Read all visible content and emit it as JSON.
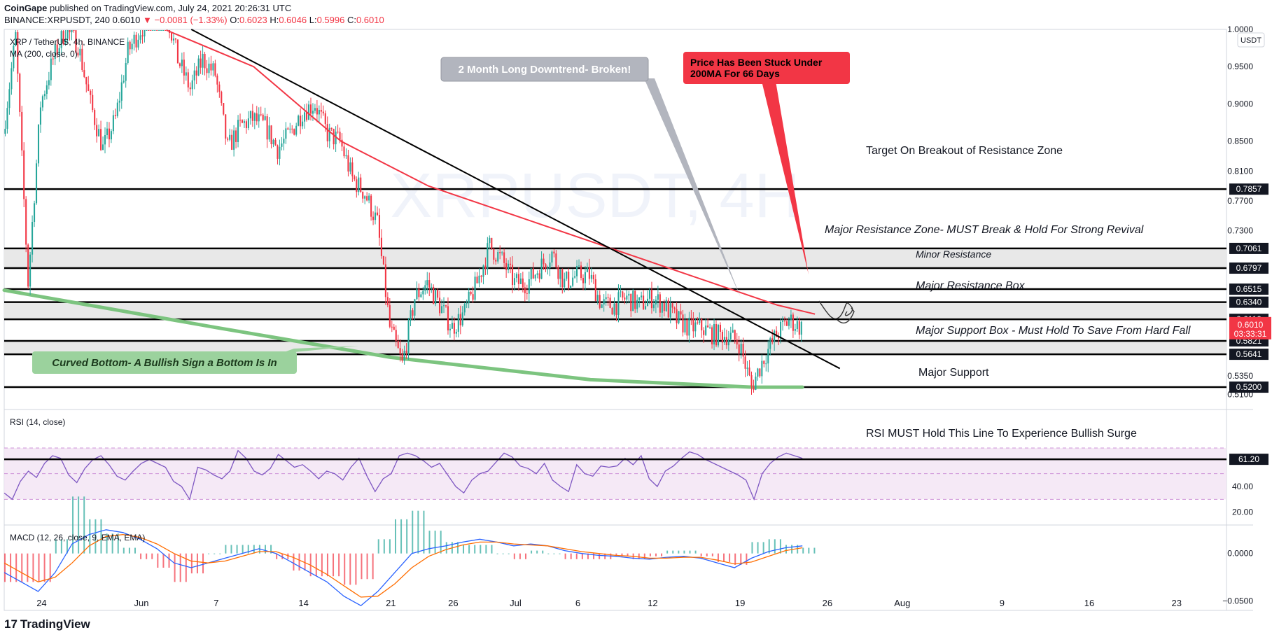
{
  "header": {
    "publisher": "CoinGape",
    "published_text": "published on TradingView.com, July 24, 2021 20:26:31 UTC",
    "symbol": "BINANCE:XRPUSDT, 240",
    "last": "0.6010",
    "change": "▼ −0.0081 (−1.33%)",
    "o_label": "O:",
    "o_value": "0.6023",
    "h_label": "H:",
    "h_value": "0.6046",
    "l_label": "L:",
    "l_value": "0.5996",
    "c_label": "C:",
    "c_value": "0.6010"
  },
  "footer": {
    "logo_glyph": "17",
    "brand": "TradingView"
  },
  "colors": {
    "up": "#26a69a",
    "down": "#f23645",
    "ma": "#f23645",
    "rsi": "#7e57c2",
    "macd": "#2962ff",
    "signal": "#ff6d00",
    "curve": "#7cc47f",
    "zone": "#e8e8e8"
  },
  "chart_data": [
    {
      "type": "candlestick",
      "legend": [
        "XRP / TetherUS, 4h, BINANCE",
        "MA (200, close, 0)"
      ],
      "currency": "USDT",
      "ylim": [
        0.49,
        1.0
      ],
      "y_ticks": [
        "0.5100",
        "0.5350",
        "0.7300",
        "0.7700",
        "0.8100",
        "0.8500",
        "0.9000",
        "0.9500",
        "1.0000"
      ],
      "x_ticks": [
        "24",
        "Jun",
        "7",
        "14",
        "21",
        "26",
        "Jul",
        "6",
        "12",
        "19",
        "26",
        "Aug",
        "9",
        "16",
        "23"
      ],
      "x_range": [
        "2021-05-21",
        "2021-08-27"
      ],
      "price_levels": [
        {
          "label": "0.7857",
          "value": 0.7857,
          "style": "dark"
        },
        {
          "label": "0.7061",
          "value": 0.7061,
          "style": "dark"
        },
        {
          "label": "0.6797",
          "value": 0.6797,
          "style": "dark"
        },
        {
          "label": "0.6515",
          "value": 0.6515,
          "style": "dark"
        },
        {
          "label": "0.6340",
          "value": 0.634,
          "style": "dark"
        },
        {
          "label": "0.6110",
          "value": 0.611,
          "style": "dark"
        },
        {
          "label": "0.5821",
          "value": 0.5821,
          "style": "dark"
        },
        {
          "label": "0.5641",
          "value": 0.5641,
          "style": "dark"
        },
        {
          "label": "0.5200",
          "value": 0.52,
          "style": "dark"
        }
      ],
      "last_price": {
        "label": "0.6010",
        "value": 0.601,
        "countdown": "03:33:31"
      },
      "zones": [
        {
          "from": 0.6797,
          "to": 0.7061
        },
        {
          "from": 0.611,
          "to": 0.634
        },
        {
          "from": 0.5641,
          "to": 0.5821
        }
      ],
      "annotations": {
        "target": "Target On Breakout of Resistance Zone",
        "major_resistance_zone": "Major Resistance Zone- MUST Break & Hold For Strong Revival",
        "minor_resistance": "Minor Resistance",
        "major_resistance_box": "Major Resistance Box",
        "major_support_box": "Major Support Box - Must Hold To Save From Hard Fall",
        "major_support": "Major Support",
        "downtrend": "2 Month Long Downtrend- Broken!",
        "ma_stuck_1": "Price Has Been Stuck Under",
        "ma_stuck_2": "200MA For 66 Days",
        "curved_bottom": "Curved Bottom- A Bullish Sign a Bottom Is In"
      },
      "watermark": "XRPUSDT, 4H",
      "price_path": [
        [
          "2021-05-21",
          0.86
        ],
        [
          "2021-05-22",
          0.99
        ],
        [
          "2021-05-23",
          0.66
        ],
        [
          "2021-05-24",
          0.9
        ],
        [
          "2021-05-25",
          0.96
        ],
        [
          "2021-05-26",
          1.0
        ],
        [
          "2021-05-27",
          0.98
        ],
        [
          "2021-05-28",
          0.9
        ],
        [
          "2021-05-29",
          0.84
        ],
        [
          "2021-05-30",
          0.88
        ],
        [
          "2021-05-31",
          0.97
        ],
        [
          "2021-06-01",
          1.0
        ],
        [
          "2021-06-02",
          1.02
        ],
        [
          "2021-06-03",
          1.03
        ],
        [
          "2021-06-04",
          0.96
        ],
        [
          "2021-06-05",
          0.92
        ],
        [
          "2021-06-06",
          0.96
        ],
        [
          "2021-06-07",
          0.94
        ],
        [
          "2021-06-08",
          0.84
        ],
        [
          "2021-06-09",
          0.87
        ],
        [
          "2021-06-10",
          0.88
        ],
        [
          "2021-06-11",
          0.87
        ],
        [
          "2021-06-12",
          0.84
        ],
        [
          "2021-06-13",
          0.86
        ],
        [
          "2021-06-14",
          0.89
        ],
        [
          "2021-06-15",
          0.9
        ],
        [
          "2021-06-16",
          0.86
        ],
        [
          "2021-06-17",
          0.85
        ],
        [
          "2021-06-18",
          0.8
        ],
        [
          "2021-06-19",
          0.78
        ],
        [
          "2021-06-20",
          0.74
        ],
        [
          "2021-06-21",
          0.6
        ],
        [
          "2021-06-22",
          0.55
        ],
        [
          "2021-06-23",
          0.64
        ],
        [
          "2021-06-24",
          0.66
        ],
        [
          "2021-06-25",
          0.63
        ],
        [
          "2021-06-26",
          0.6
        ],
        [
          "2021-06-27",
          0.62
        ],
        [
          "2021-06-28",
          0.66
        ],
        [
          "2021-06-29",
          0.71
        ],
        [
          "2021-06-30",
          0.69
        ],
        [
          "2021-07-01",
          0.66
        ],
        [
          "2021-07-02",
          0.66
        ],
        [
          "2021-07-03",
          0.68
        ],
        [
          "2021-07-04",
          0.7
        ],
        [
          "2021-07-05",
          0.66
        ],
        [
          "2021-07-06",
          0.67
        ],
        [
          "2021-07-07",
          0.67
        ],
        [
          "2021-07-08",
          0.63
        ],
        [
          "2021-07-09",
          0.63
        ],
        [
          "2021-07-10",
          0.64
        ],
        [
          "2021-07-11",
          0.63
        ],
        [
          "2021-07-12",
          0.64
        ],
        [
          "2021-07-13",
          0.63
        ],
        [
          "2021-07-14",
          0.61
        ],
        [
          "2021-07-15",
          0.6
        ],
        [
          "2021-07-16",
          0.6
        ],
        [
          "2021-07-17",
          0.59
        ],
        [
          "2021-07-18",
          0.59
        ],
        [
          "2021-07-19",
          0.58
        ],
        [
          "2021-07-20",
          0.52
        ],
        [
          "2021-07-21",
          0.56
        ],
        [
          "2021-07-22",
          0.59
        ],
        [
          "2021-07-23",
          0.61
        ],
        [
          "2021-07-24",
          0.6
        ]
      ],
      "ma200_path": [
        [
          "2021-06-03",
          1.03
        ],
        [
          "2021-06-10",
          0.95
        ],
        [
          "2021-06-17",
          0.85
        ],
        [
          "2021-06-24",
          0.79
        ],
        [
          "2021-07-01",
          0.75
        ],
        [
          "2021-07-08",
          0.71
        ],
        [
          "2021-07-15",
          0.67
        ],
        [
          "2021-07-22",
          0.63
        ],
        [
          "2021-07-25",
          0.618
        ]
      ],
      "trendline": [
        [
          "2021-06-05",
          1.0
        ],
        [
          "2021-07-27",
          0.545
        ]
      ],
      "curved_bottom_path": [
        [
          "2021-05-21",
          0.65
        ],
        [
          "2021-06-07",
          0.6
        ],
        [
          "2021-06-21",
          0.56
        ],
        [
          "2021-07-07",
          0.53
        ],
        [
          "2021-07-20",
          0.52
        ],
        [
          "2021-07-24",
          0.52
        ]
      ]
    },
    {
      "type": "line",
      "legend": "RSI (14, close)",
      "ylim": [
        10,
        100
      ],
      "y_ticks": [
        "20.00",
        "40.00"
      ],
      "level": {
        "label": "61.20",
        "value": 61.2
      },
      "band": [
        30,
        70
      ],
      "annotation": "RSI MUST Hold This Line To Experience Bullish Surge",
      "values": [
        35,
        30,
        44,
        52,
        47,
        58,
        64,
        62,
        49,
        43,
        54,
        61,
        64,
        57,
        48,
        45,
        52,
        58,
        61,
        58,
        55,
        44,
        40,
        30,
        55,
        53,
        49,
        46,
        52,
        68,
        62,
        52,
        49,
        54,
        65,
        60,
        55,
        57,
        52,
        46,
        52,
        50,
        45,
        55,
        62,
        48,
        36,
        46,
        50,
        64,
        66,
        64,
        60,
        55,
        58,
        49,
        40,
        35,
        45,
        50,
        52,
        59,
        66,
        63,
        56,
        54,
        50,
        58,
        45,
        40,
        36,
        57,
        50,
        48,
        56,
        55,
        56,
        62,
        57,
        64,
        46,
        40,
        52,
        56,
        62,
        67,
        65,
        61,
        58,
        55,
        52,
        49,
        45,
        30,
        50,
        58,
        63,
        66,
        64,
        62
      ]
    },
    {
      "type": "line",
      "legend": "MACD (12, 26, close, 9, EMA, EMA)",
      "y_ticks": [
        "0.0000",
        "−0.0500"
      ],
      "ylim": [
        -0.06,
        0.03
      ],
      "macd": [
        -0.02,
        -0.03,
        -0.04,
        -0.02,
        0.01,
        0.02,
        0.025,
        0.022,
        0.015,
        0.005,
        -0.01,
        -0.015,
        -0.01,
        -0.005,
        0.0,
        0.005,
        0.0,
        -0.01,
        -0.02,
        -0.03,
        -0.045,
        -0.055,
        -0.04,
        -0.02,
        0.0,
        0.005,
        0.008,
        0.012,
        0.015,
        0.012,
        0.008,
        0.01,
        0.008,
        0.003,
        0.0,
        -0.002,
        -0.003,
        -0.005,
        -0.006,
        -0.004,
        -0.003,
        -0.005,
        -0.01,
        -0.015,
        -0.005,
        0.002,
        0.006,
        0.008
      ],
      "signal": [
        -0.01,
        -0.02,
        -0.03,
        -0.025,
        -0.01,
        0.008,
        0.018,
        0.02,
        0.017,
        0.01,
        0.0,
        -0.008,
        -0.01,
        -0.008,
        -0.003,
        0.002,
        0.002,
        -0.004,
        -0.012,
        -0.022,
        -0.034,
        -0.046,
        -0.045,
        -0.032,
        -0.015,
        -0.003,
        0.004,
        0.009,
        0.012,
        0.012,
        0.01,
        0.009,
        0.008,
        0.005,
        0.002,
        0.0,
        -0.002,
        -0.003,
        -0.005,
        -0.005,
        -0.004,
        -0.004,
        -0.007,
        -0.011,
        -0.009,
        -0.003,
        0.003,
        0.006
      ]
    }
  ]
}
